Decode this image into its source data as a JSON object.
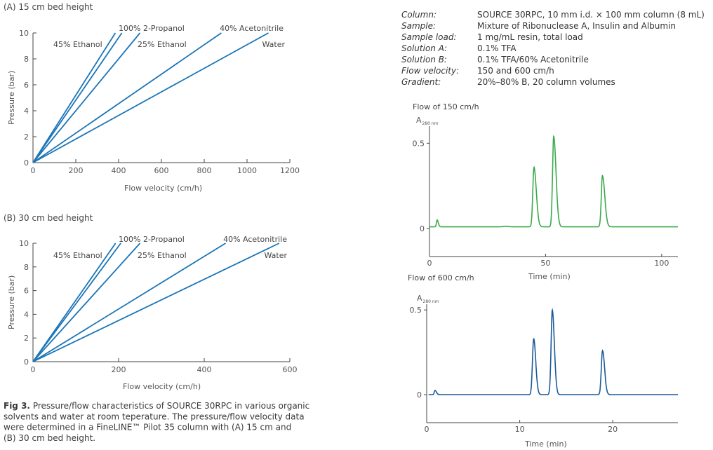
{
  "colors": {
    "pressure_line": "#1b75b6",
    "chrom_150": "#3aaa4a",
    "chrom_600": "#1b5a99",
    "axis": "#444444"
  },
  "chart_data": [
    {
      "type": "line",
      "panel": "pressure-15cm",
      "title": "(A) 15 cm bed height",
      "xlabel": "Flow velocity (cm/h)",
      "ylabel": "Pressure (bar)",
      "xlim": [
        0,
        1200
      ],
      "ylim": [
        0,
        10
      ],
      "xticks": [
        0,
        200,
        400,
        600,
        800,
        1000,
        1200
      ],
      "yticks": [
        0,
        2,
        4,
        6,
        8,
        10
      ],
      "series": [
        {
          "name": "45% Ethanol",
          "x": [
            0,
            385
          ],
          "y": [
            0,
            10
          ]
        },
        {
          "name": "100% 2-Propanol",
          "x": [
            0,
            415
          ],
          "y": [
            0,
            10
          ]
        },
        {
          "name": "25% Ethanol",
          "x": [
            0,
            500
          ],
          "y": [
            0,
            10
          ]
        },
        {
          "name": "40% Acetonitrile",
          "x": [
            0,
            880
          ],
          "y": [
            0,
            10
          ]
        },
        {
          "name": "Water",
          "x": [
            0,
            1100
          ],
          "y": [
            0,
            10
          ]
        }
      ]
    },
    {
      "type": "line",
      "panel": "pressure-30cm",
      "title": "(B) 30 cm bed height",
      "xlabel": "Flow velocity (cm/h)",
      "ylabel": "Pressure (bar)",
      "xlim": [
        0,
        600
      ],
      "ylim": [
        0,
        10
      ],
      "xticks": [
        0,
        200,
        400,
        600
      ],
      "yticks": [
        0,
        2,
        4,
        6,
        8,
        10
      ],
      "series": [
        {
          "name": "45% Ethanol",
          "x": [
            0,
            193
          ],
          "y": [
            0,
            10
          ]
        },
        {
          "name": "100% 2-Propanol",
          "x": [
            0,
            205
          ],
          "y": [
            0,
            10
          ]
        },
        {
          "name": "25% Ethanol",
          "x": [
            0,
            250
          ],
          "y": [
            0,
            10
          ]
        },
        {
          "name": "40% Acetonitrile",
          "x": [
            0,
            450
          ],
          "y": [
            0,
            10
          ]
        },
        {
          "name": "Water",
          "x": [
            0,
            575
          ],
          "y": [
            0,
            10
          ]
        }
      ]
    },
    {
      "type": "line",
      "panel": "chromatogram-150",
      "title": "Flow of 150 cm/h",
      "ylabel": "A280 nm",
      "xlabel": "Time (min)",
      "xlim": [
        0,
        107
      ],
      "ylim": [
        0,
        0.6
      ],
      "xticks": [
        0,
        50,
        100
      ],
      "yticks": [
        0,
        0.5
      ],
      "baseline": 0.01,
      "peaks": [
        {
          "t": 3.3,
          "h": 0.04,
          "wl": 0.3,
          "wr": 0.5
        },
        {
          "t": 33,
          "h": 0.003,
          "wl": 1.0,
          "wr": 1.0
        },
        {
          "t": 45,
          "h": 0.35,
          "wl": 0.5,
          "wr": 1.0
        },
        {
          "t": 53.5,
          "h": 0.53,
          "wl": 0.5,
          "wr": 1.0
        },
        {
          "t": 74.5,
          "h": 0.3,
          "wl": 0.5,
          "wr": 1.0
        }
      ]
    },
    {
      "type": "line",
      "panel": "chromatogram-600",
      "title": "Flow of 600 cm/h",
      "ylabel": "A280 nm",
      "xlabel": "Time (min)",
      "xlim": [
        0,
        27
      ],
      "ylim": [
        0,
        0.6
      ],
      "xticks": [
        0,
        10,
        20
      ],
      "yticks": [
        0,
        0.5
      ],
      "baseline": 0.0,
      "peaks": [
        {
          "t": 0.9,
          "h": 0.025,
          "wl": 0.08,
          "wr": 0.15
        },
        {
          "t": 11.5,
          "h": 0.33,
          "wl": 0.13,
          "wr": 0.22
        },
        {
          "t": 13.5,
          "h": 0.5,
          "wl": 0.13,
          "wr": 0.22
        },
        {
          "t": 18.9,
          "h": 0.26,
          "wl": 0.13,
          "wr": 0.22
        }
      ]
    }
  ],
  "conditions": [
    {
      "key": "Column:",
      "value": "SOURCE 30RPC, 10 mm i.d. × 100 mm column (8 mL)"
    },
    {
      "key": "Sample:",
      "value": "Mixture of Ribonuclease A, Insulin and Albumin"
    },
    {
      "key": "Sample load:",
      "value": "1 mg/mL resin, total load"
    },
    {
      "key": "Solution A:",
      "value": "0.1% TFA"
    },
    {
      "key": "Solution B:",
      "value": "0.1% TFA/60% Acetonitrile"
    },
    {
      "key": "Flow velocity:",
      "value": "150 and 600 cm/h"
    },
    {
      "key": "Gradient:",
      "value": "20%–80% B, 20 column volumes"
    }
  ],
  "caption": {
    "bold": "Fig 3.",
    "lines": [
      " Pressure/flow characteristics of SOURCE 30RPC in various organic",
      "solvents and water at room teperature. The pressure/flow velocity data",
      "were determined in a FineLINE™ Pilot 35 column with (A) 15 cm and",
      "(B) 30 cm bed height."
    ]
  }
}
